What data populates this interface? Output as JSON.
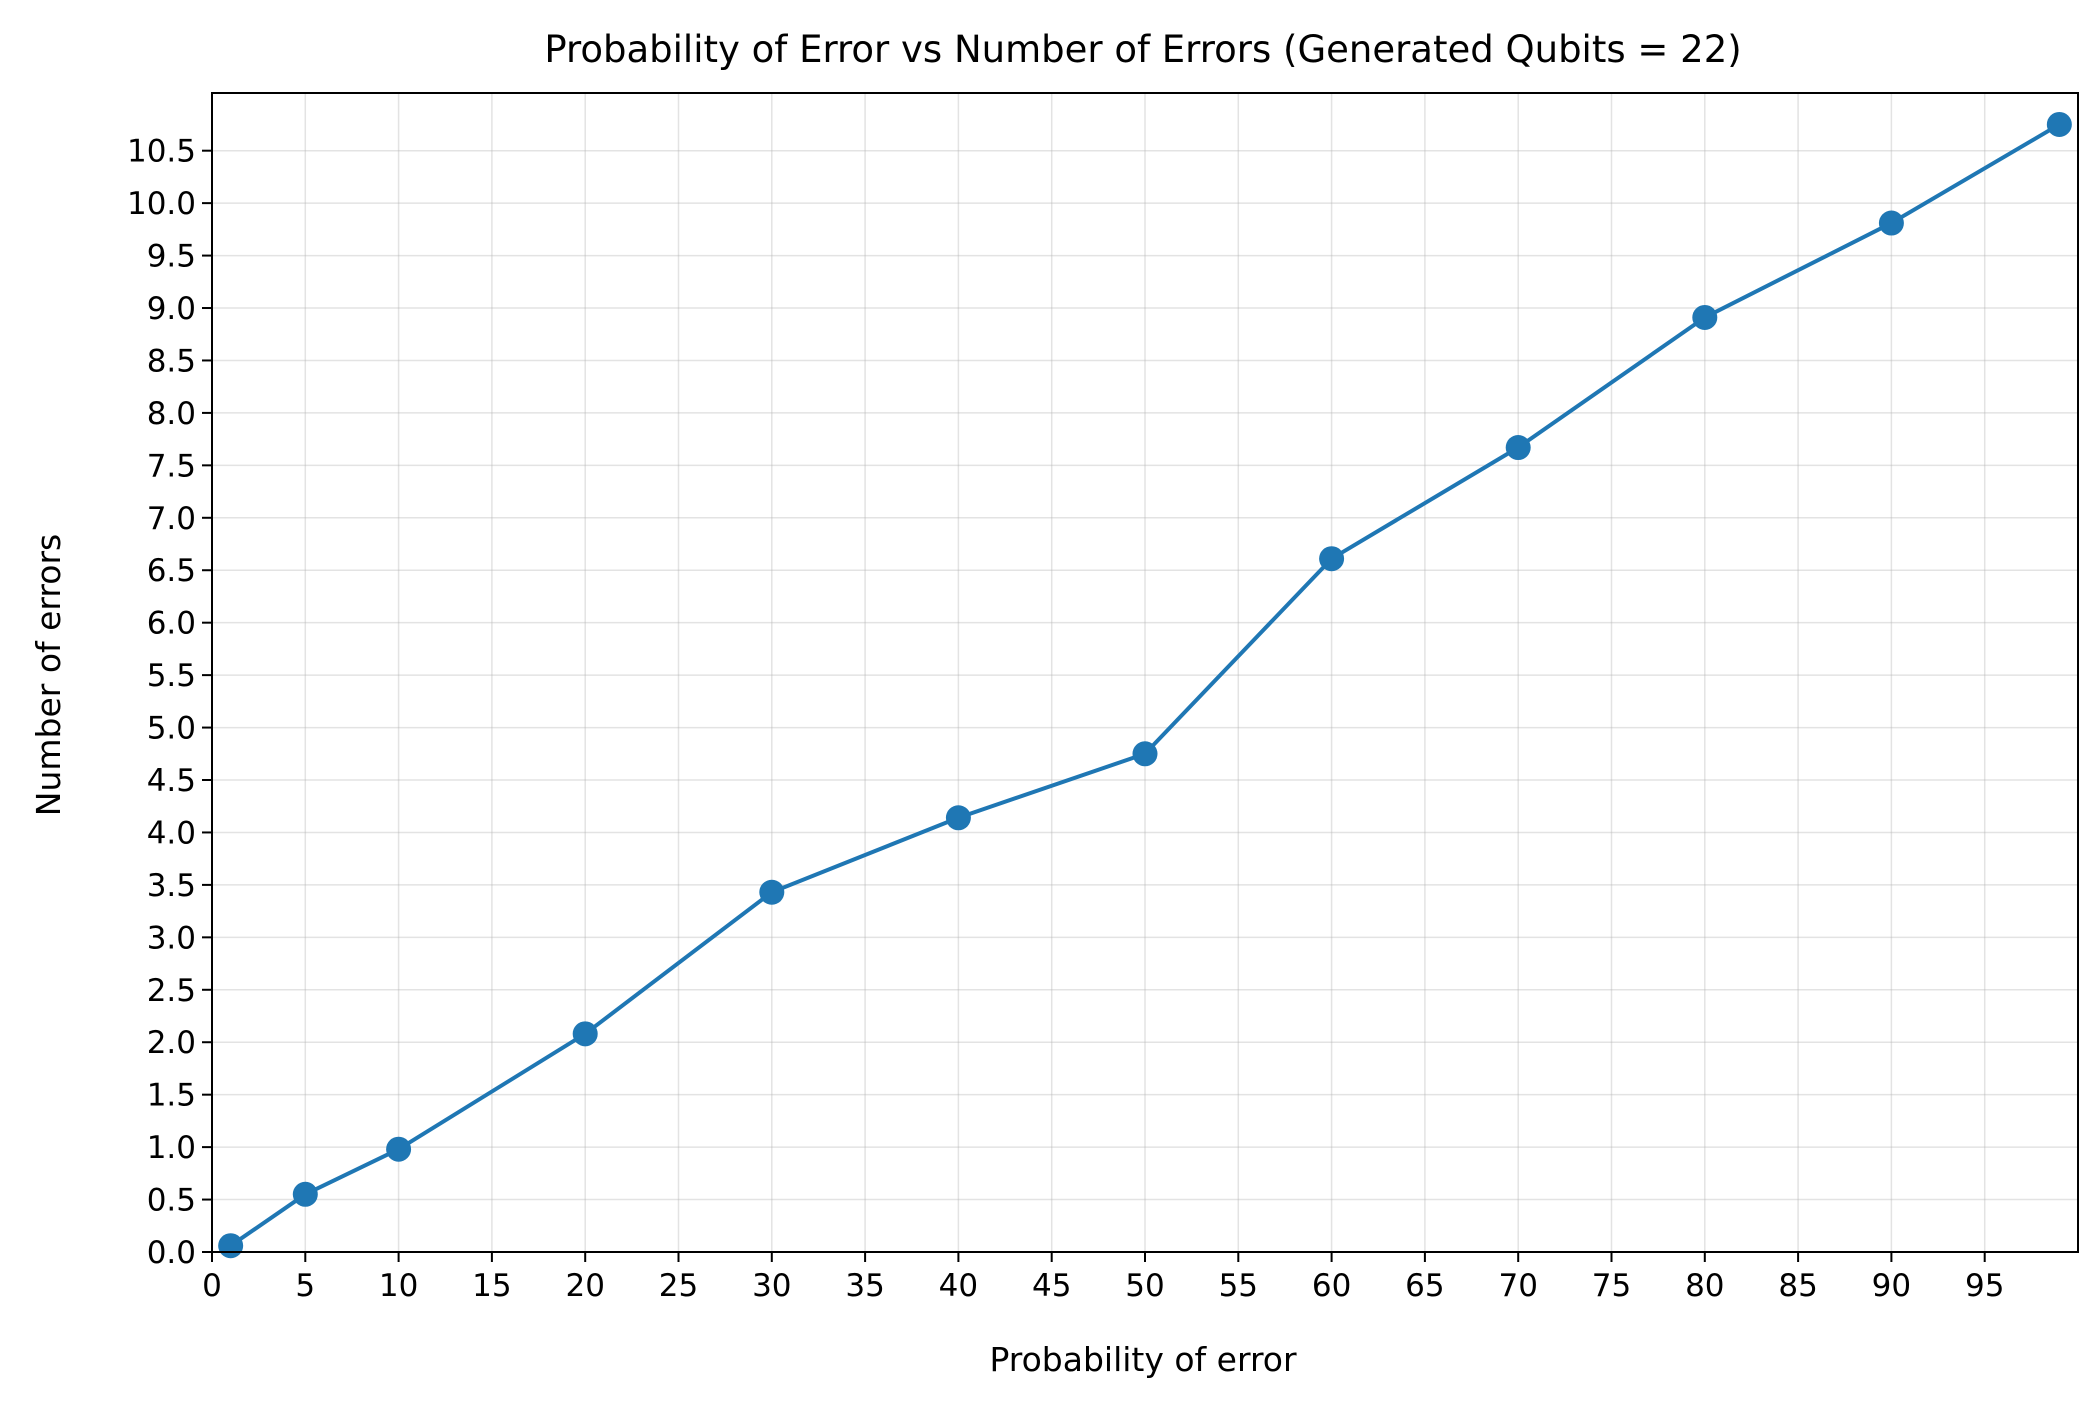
{
  "chart_data": {
    "type": "line",
    "title": "Probability of Error vs Number of Errors (Generated Qubits = 22)",
    "xlabel": "Probability of error",
    "ylabel": "Number of errors",
    "xlim": [
      0,
      100
    ],
    "ylim": [
      0,
      11.05
    ],
    "x_ticks": [
      0,
      5,
      10,
      15,
      20,
      25,
      30,
      35,
      40,
      45,
      50,
      55,
      60,
      65,
      70,
      75,
      80,
      85,
      90,
      95
    ],
    "y_ticks": [
      0.0,
      0.5,
      1.0,
      1.5,
      2.0,
      2.5,
      3.0,
      3.5,
      4.0,
      4.5,
      5.0,
      5.5,
      6.0,
      6.5,
      7.0,
      7.5,
      8.0,
      8.5,
      9.0,
      9.5,
      10.0,
      10.5
    ],
    "grid": true,
    "series": [
      {
        "color": "#1f77b4",
        "x": [
          1,
          5,
          10,
          20,
          30,
          40,
          50,
          60,
          70,
          80,
          90,
          99
        ],
        "y": [
          0.06,
          0.55,
          0.98,
          2.08,
          3.43,
          4.14,
          4.75,
          6.61,
          7.67,
          8.91,
          9.81,
          10.75
        ]
      }
    ]
  }
}
